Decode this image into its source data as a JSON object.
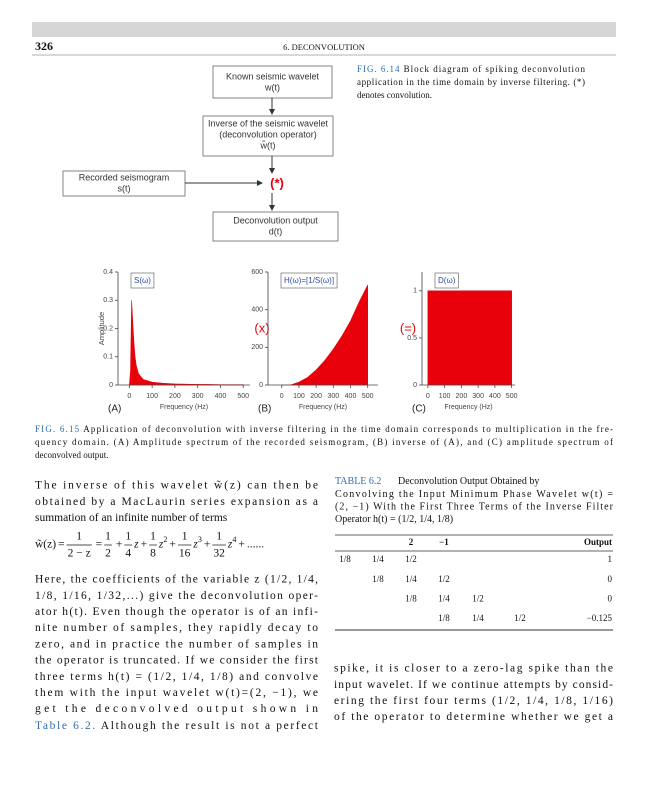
{
  "header": {
    "page_number": "326",
    "running_title": "6. DECONVOLUTION"
  },
  "figure_6_14": {
    "boxes": [
      {
        "lines": [
          "Known seismic wavelet",
          "w(t)"
        ]
      },
      {
        "lines": [
          "Inverse of the seismic wavelet",
          "(deconvolution operator)",
          "w̃(t)"
        ]
      },
      {
        "lines": [
          "Recorded seismogram",
          "s(t)"
        ]
      },
      {
        "lines": [
          "Deconvolution output",
          "d(t)"
        ]
      }
    ],
    "operator": "(*)",
    "caption": {
      "label": "FIG. 6.14",
      "lines": [
        "Block diagram of spiking deconvolution",
        "application in the time domain by inverse filtering. (*)",
        "denotes convolution."
      ]
    }
  },
  "figure_6_15": {
    "panels": [
      {
        "tag": "(A)",
        "legend": "S(ω)",
        "ylabel": "Amplitude",
        "xlabel": "Frequency (Hz)",
        "x": [
          0,
          5,
          10,
          15,
          20,
          25,
          30,
          40,
          50,
          60,
          80,
          100,
          150,
          200,
          250,
          300,
          350,
          400,
          450,
          500
        ],
        "values": [
          0,
          0.05,
          0.3,
          0.22,
          0.15,
          0.1,
          0.07,
          0.04,
          0.03,
          0.02,
          0.015,
          0.01,
          0.006,
          0.004,
          0.003,
          0.002,
          0.002,
          0.001,
          0.001,
          0.001
        ],
        "xlim": [
          -50,
          530
        ],
        "ylim": [
          0,
          0.4
        ],
        "xticks": [
          0,
          100,
          200,
          300,
          400,
          500
        ],
        "yticks": [
          0,
          0.1,
          0.2,
          0.3,
          0.4
        ]
      },
      {
        "tag": "(B)",
        "legend": "H(ω)=[1/S(ω)]",
        "xlabel": "Frequency (Hz)",
        "x": [
          0,
          50,
          100,
          150,
          200,
          250,
          300,
          350,
          400,
          450,
          500
        ],
        "values": [
          0,
          0,
          15,
          40,
          80,
          130,
          190,
          260,
          340,
          440,
          530
        ],
        "xlim": [
          -80,
          560
        ],
        "ylim": [
          0,
          600
        ],
        "xticks": [
          0,
          100,
          200,
          300,
          400,
          500
        ],
        "yticks": [
          0,
          200,
          400,
          600
        ]
      },
      {
        "tag": "(C)",
        "legend": "D(ω)",
        "xlabel": "Frequency (Hz)",
        "x": [
          0,
          500
        ],
        "values": [
          1,
          1
        ],
        "xlim": [
          -35,
          520
        ],
        "ylim": [
          0,
          1.2
        ],
        "xticks": [
          0,
          100,
          200,
          300,
          400,
          500
        ],
        "yticks": [
          0,
          0.5,
          1
        ]
      }
    ],
    "operators": [
      "(x)",
      "(=)"
    ],
    "caption": {
      "label": "FIG. 6.15",
      "lines": [
        "Application of deconvolution with inverse filtering in the time domain corresponds to multiplication in the fre-",
        "quency domain. (A) Amplitude spectrum of the recorded seismogram, (B) inverse of (A), and (C) amplitude spectrum of",
        "deconvolved output."
      ]
    }
  },
  "body": {
    "left_lines_1": [
      "The inverse of this wavelet w̃(z) can then be",
      "obtained by a MacLaurin series expansion as a",
      "summation of an infinite number of terms"
    ],
    "equation": {
      "lhs": "w̃(z)",
      "signs": [
        "=",
        "=",
        "+",
        "+",
        "+",
        "+",
        "+"
      ],
      "terms": [
        {
          "num": "1",
          "den": "2 − z"
        },
        {
          "num": "1",
          "den": "2"
        },
        {
          "num": "1",
          "den": "4",
          "var": "z"
        },
        {
          "num": "1",
          "den": "8",
          "var": "z",
          "exp": "2"
        },
        {
          "num": "1",
          "den": "16",
          "var": "z",
          "exp": "3"
        },
        {
          "num": "1",
          "den": "32",
          "var": "z",
          "exp": "4"
        }
      ],
      "tail": "......"
    },
    "left_lines_2": [
      "Here, the coefficients of the variable z (1/2, 1/4,",
      "1/8, 1/16, 1/32,...) give the deconvolution oper-",
      "ator h(t). Even though the operator is of an infi-",
      "nite number of samples, they rapidly decay to",
      "zero, and in practice the number of samples in",
      "the operator is truncated. If we consider the first",
      "three terms h(t) = (1/2, 1/4, 1/8) and convolve",
      "them with the input wavelet w(t)=(2, −1), we",
      "get the deconvolved output shown in"
    ],
    "table_link": "Table 6.2.",
    "left_last": " Although the result is not a perfect",
    "right_lines": [
      "spike, it is closer to a zero-lag spike than the",
      "input wavelet. If we continue attempts by consid-",
      "ering the first four terms (1/2, 1/4, 1/8, 1/16)",
      "of the operator to determine whether we get a"
    ]
  },
  "table_6_2": {
    "label": "TABLE 6.2",
    "caption_lines": [
      "Deconvolution Output Obtained by",
      "Convolving the Input Minimum Phase Wavelet w(t) =",
      "(2, −1) With the First Three Terms of the Inverse Filter",
      "Operator h(t) = (1/2, 1/4, 1/8)"
    ],
    "header": [
      null,
      null,
      "2",
      "−1",
      null,
      null,
      "Output"
    ],
    "rows": [
      [
        "1/8",
        "1/4",
        "1/2",
        null,
        null,
        null,
        "1"
      ],
      [
        null,
        "1/8",
        "1/4",
        "1/2",
        null,
        null,
        "0"
      ],
      [
        null,
        null,
        "1/8",
        "1/4",
        "1/2",
        null,
        "0"
      ],
      [
        null,
        null,
        null,
        "1/8",
        "1/4",
        "1/2",
        "−0.125"
      ]
    ]
  }
}
